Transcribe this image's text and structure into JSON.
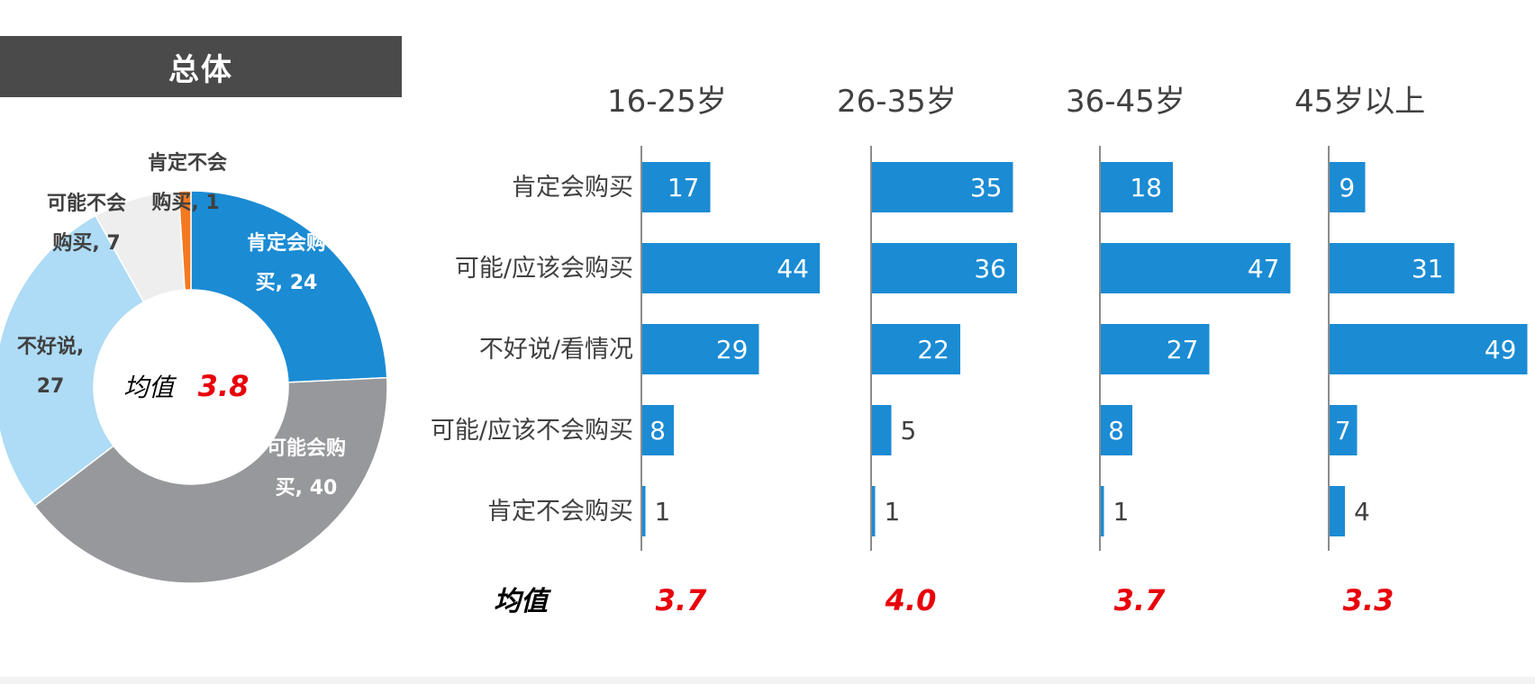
{
  "overall": {
    "title": "总体",
    "mean_label": "均值",
    "mean_value": "3.8"
  },
  "colors": {
    "bar": "#1b8bd4",
    "pie_definitely_buy": "#1b8bd4",
    "pie_probably_buy": "#97989b",
    "pie_unsure": "#aedbf5",
    "pie_probably_not": "#eeeeee",
    "pie_definitely_not": "#f47920",
    "mean_red": "#e8000b"
  },
  "row_mean_label": "均值",
  "chart_data": [
    {
      "type": "pie",
      "title": "总体",
      "slices": [
        {
          "label_lines": [
            "肯定会购",
            "买, 24"
          ],
          "value": 24,
          "color": "#1b8bd4",
          "text_color": "#ffffff"
        },
        {
          "label_lines": [
            "可能会购",
            "买, 40"
          ],
          "value": 40,
          "color": "#97989b",
          "text_color": "#ffffff"
        },
        {
          "label_lines": [
            "不好说,",
            "27"
          ],
          "value": 27,
          "color": "#aedbf5",
          "text_color": "#404040"
        },
        {
          "label_lines": [
            "可能不会",
            "购买, 7"
          ],
          "value": 7,
          "color": "#eeeeee",
          "text_color": "#404040"
        },
        {
          "label_lines": [
            "肯定不会",
            "购买, 1"
          ],
          "value": 1,
          "color": "#f47920",
          "text_color": "#404040"
        }
      ],
      "center_text": "均值",
      "center_value": "3.8"
    },
    {
      "type": "bar",
      "orientation": "horizontal",
      "categories": [
        "肯定会购买",
        "可能/应该会购买",
        "不好说/看情况",
        "可能/应该不会购买",
        "肯定不会购买"
      ],
      "panels": [
        {
          "title": "16-25岁",
          "values": [
            17,
            44,
            29,
            8,
            1
          ],
          "mean": "3.7"
        },
        {
          "title": "26-35岁",
          "values": [
            35,
            36,
            22,
            5,
            1
          ],
          "mean": "4.0"
        },
        {
          "title": "36-45岁",
          "values": [
            18,
            47,
            27,
            8,
            1
          ],
          "mean": "3.7"
        },
        {
          "title": "45岁以上",
          "values": [
            9,
            31,
            49,
            7,
            4
          ],
          "mean": "3.3"
        }
      ],
      "xlim": [
        0,
        50
      ]
    }
  ]
}
